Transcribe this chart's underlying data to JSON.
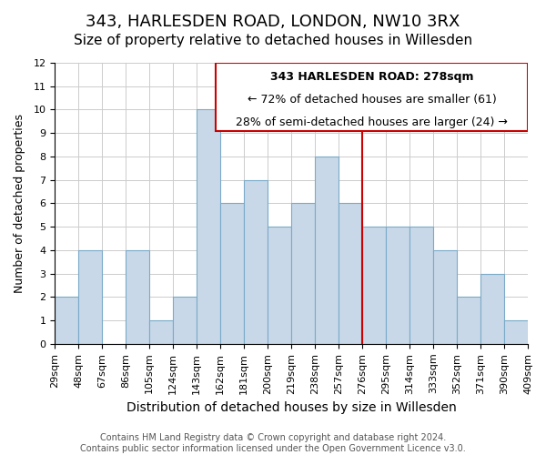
{
  "title": "343, HARLESDEN ROAD, LONDON, NW10 3RX",
  "subtitle": "Size of property relative to detached houses in Willesden",
  "xlabel": "Distribution of detached houses by size in Willesden",
  "ylabel": "Number of detached properties",
  "tick_labels": [
    "29sqm",
    "48sqm",
    "67sqm",
    "86sqm",
    "105sqm",
    "124sqm",
    "143sqm",
    "162sqm",
    "181sqm",
    "200sqm",
    "219sqm",
    "238sqm",
    "257sqm",
    "276sqm",
    "295sqm",
    "314sqm",
    "333sqm",
    "352sqm",
    "371sqm",
    "390sqm",
    "409sqm"
  ],
  "bar_heights": [
    2,
    4,
    0,
    4,
    1,
    2,
    10,
    6,
    7,
    5,
    6,
    8,
    6,
    5,
    5,
    5,
    4,
    2,
    3,
    1
  ],
  "bar_color": "#c8d8e8",
  "bar_edgecolor": "#7aaac8",
  "bar_linewidth": 0.8,
  "grid_color": "#cccccc",
  "background_color": "#ffffff",
  "vline_position": 13,
  "vline_color": "#cc0000",
  "annotation_title": "343 HARLESDEN ROAD: 278sqm",
  "annotation_line1": "← 72% of detached houses are smaller (61)",
  "annotation_line2": "28% of semi-detached houses are larger (24) →",
  "annotation_box_edgecolor": "#cc0000",
  "annotation_box_facecolor": "#ffffff",
  "ylim": [
    0,
    12
  ],
  "yticks": [
    0,
    1,
    2,
    3,
    4,
    5,
    6,
    7,
    8,
    9,
    10,
    11,
    12
  ],
  "footer_line1": "Contains HM Land Registry data © Crown copyright and database right 2024.",
  "footer_line2": "Contains public sector information licensed under the Open Government Licence v3.0.",
  "title_fontsize": 13,
  "subtitle_fontsize": 11,
  "xlabel_fontsize": 10,
  "ylabel_fontsize": 9,
  "tick_fontsize": 8,
  "footer_fontsize": 7,
  "annotation_fontsize": 9
}
